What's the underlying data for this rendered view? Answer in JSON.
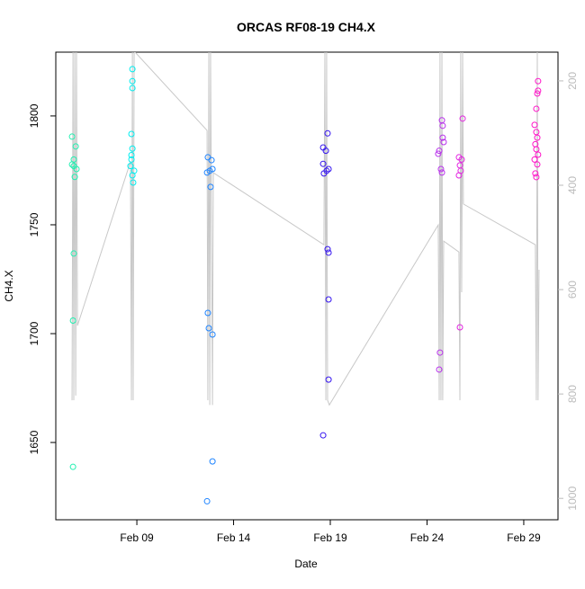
{
  "chart_data": {
    "type": "scatter",
    "title": "ORCAS RF08-19 CH4.X",
    "xlabel": "Date",
    "ylabel": "CH4.X",
    "xlim": [
      4.81,
      30.77
    ],
    "xticks": [
      {
        "value": 9,
        "label": "Feb 09"
      },
      {
        "value": 14,
        "label": "Feb 14"
      },
      {
        "value": 19,
        "label": "Feb 19"
      },
      {
        "value": 24,
        "label": "Feb 24"
      },
      {
        "value": 29,
        "label": "Feb 29"
      }
    ],
    "ylim": [
      1614.5,
      1829.3
    ],
    "yticks": [
      1650,
      1700,
      1750,
      1800
    ],
    "y2lim": [
      1041,
      145
    ],
    "y2ticks": [
      200,
      400,
      600,
      800,
      1000
    ],
    "series": [
      {
        "color": "#20f0b0",
        "x": [
          5.65,
          5.84,
          5.74,
          5.74,
          5.79,
          5.65,
          5.88,
          5.74,
          5.7,
          5.7
        ],
        "values": [
          1790.5,
          1786,
          1780,
          1777,
          1772,
          1777.7,
          1775.6,
          1736.8,
          1706,
          1638.8
        ]
      },
      {
        "color": "#00eef0",
        "x": [
          8.77,
          8.77,
          8.77,
          8.72,
          8.77,
          8.72,
          8.67,
          8.77,
          8.81,
          8.72,
          8.86
        ],
        "values": [
          1821.5,
          1816,
          1812.8,
          1791.7,
          1785,
          1782,
          1777,
          1772.7,
          1769.4,
          1780,
          1774.8
        ]
      },
      {
        "color": "#1e84ff",
        "x": [
          12.67,
          12.86,
          12.77,
          12.91,
          12.63,
          12.81,
          12.67,
          12.72,
          12.91,
          12.91,
          12.63
        ],
        "values": [
          1781,
          1779.7,
          1774.8,
          1775.6,
          1774,
          1767.4,
          1709.5,
          1702.5,
          1699.6,
          1641.3,
          1623
        ]
      },
      {
        "color": "#3414f0",
        "x": [
          18.86,
          18.63,
          18.77,
          18.63,
          18.81,
          18.91,
          18.67,
          18.86,
          18.91,
          18.91,
          18.91,
          18.63
        ],
        "values": [
          1792,
          1785.5,
          1784,
          1778,
          1774.8,
          1775.6,
          1773.6,
          1738.8,
          1737.2,
          1715.7,
          1678.9,
          1653.3
        ]
      },
      {
        "color": "#b830ec",
        "x": [
          24.77,
          24.81,
          24.81,
          24.86,
          24.63,
          24.58,
          24.72,
          24.77,
          24.67,
          24.63
        ],
        "values": [
          1798,
          1795.5,
          1790,
          1788,
          1784,
          1782.6,
          1775.6,
          1774,
          1691.3,
          1683.5
        ]
      },
      {
        "color": "#e224e0",
        "x": [
          25.84,
          25.65,
          25.79,
          25.7,
          25.74,
          25.65,
          25.7
        ],
        "values": [
          1798.8,
          1781,
          1780,
          1777.3,
          1774.8,
          1772.7,
          1702.9
        ]
      },
      {
        "color": "#ff14c8",
        "x": [
          29.74,
          29.74,
          29.7,
          29.65,
          29.56,
          29.65,
          29.7,
          29.6,
          29.65,
          29.74,
          29.56,
          29.7,
          29.6,
          29.65
        ],
        "values": [
          1816,
          1811.6,
          1810.3,
          1803.3,
          1795.9,
          1792.6,
          1790,
          1787,
          1784.7,
          1782.2,
          1780,
          1777.7,
          1773.6,
          1771.9
        ]
      },
      {
        "type": "line",
        "axis": "y2",
        "color": "#c8c8c8",
        "x": [
          5.65,
          5.7,
          5.74,
          5.79,
          5.84,
          5.88,
          5.93,
          8.67,
          8.72,
          8.77,
          8.81,
          8.86,
          8.91,
          12.63,
          12.67,
          12.72,
          12.77,
          12.81,
          12.91,
          12.95,
          18.67,
          18.72,
          18.77,
          18.81,
          18.86,
          18.95,
          24.58,
          24.63,
          24.67,
          24.72,
          24.77,
          24.81,
          24.86,
          25.65,
          25.7,
          25.74,
          25.79,
          25.84,
          25.88,
          29.6,
          29.65,
          29.7,
          29.74,
          29.79
        ],
        "values": [
          812,
          145,
          812,
          145,
          803,
          145,
          669,
          355,
          812,
          145,
          812,
          145,
          145,
          295,
          812,
          145,
          821,
          145,
          821,
          376,
          514,
          145,
          812,
          145,
          812,
          821,
          476,
          812,
          145,
          812,
          145,
          812,
          507,
          528,
          812,
          145,
          605,
          145,
          436,
          514,
          812,
          145,
          812,
          562
        ]
      }
    ]
  }
}
